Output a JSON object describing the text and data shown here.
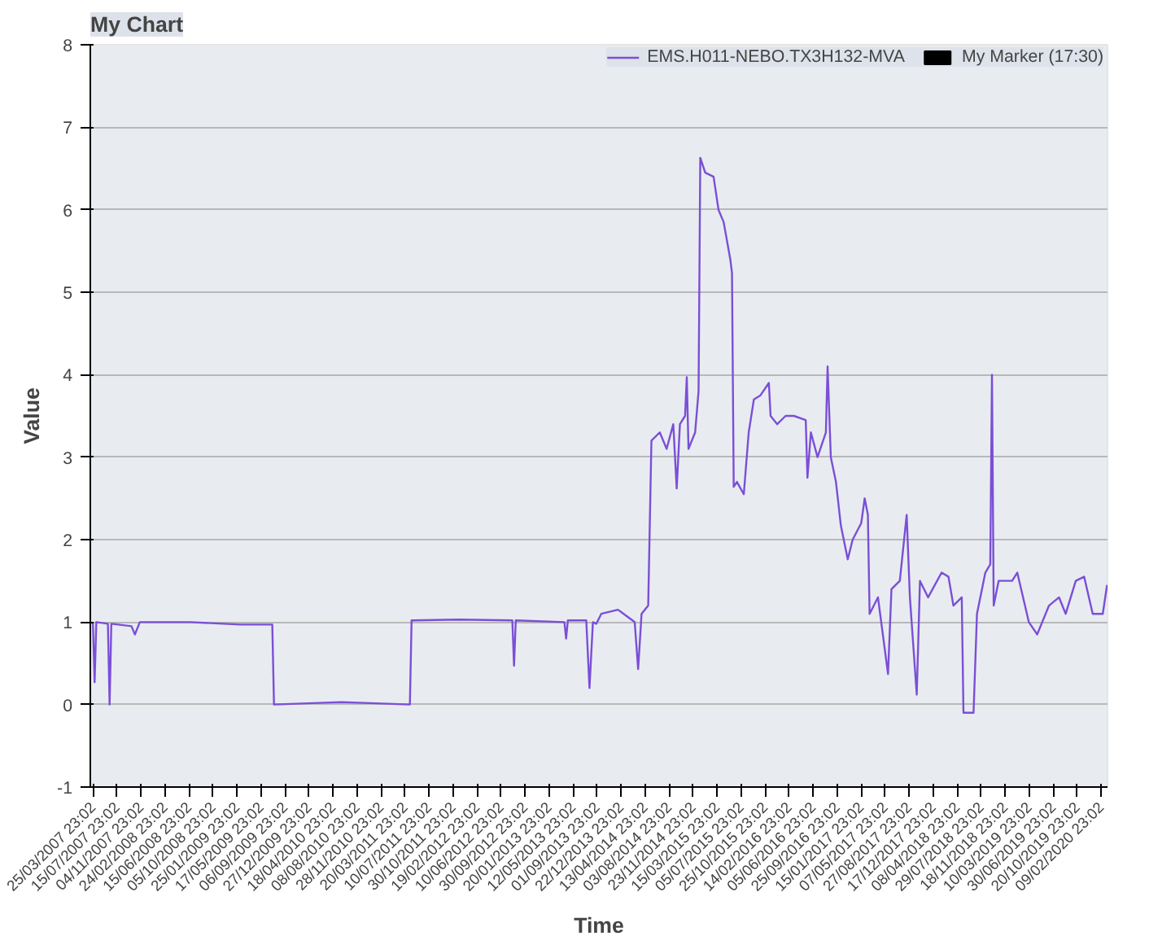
{
  "chart_data": {
    "type": "line",
    "title": "My Chart",
    "xlabel": "Time",
    "ylabel": "Value",
    "xlim": [
      "2007-03-13",
      "2020-03-10"
    ],
    "ylim": [
      -1,
      8
    ],
    "yticks": [
      -1,
      0,
      1,
      2,
      3,
      4,
      5,
      6,
      7,
      8
    ],
    "xticks": [
      {
        "value": "2007-03-25T23:02",
        "label": "25/03/2007 23:02"
      },
      {
        "value": "2007-07-15T23:02",
        "label": "15/07/2007 23:02"
      },
      {
        "value": "2007-11-04T23:02",
        "label": "04/11/2007 23:02"
      },
      {
        "value": "2008-02-24T23:02",
        "label": "24/02/2008 23:02"
      },
      {
        "value": "2008-06-15T23:02",
        "label": "15/06/2008 23:02"
      },
      {
        "value": "2008-10-05T23:02",
        "label": "05/10/2008 23:02"
      },
      {
        "value": "2009-01-25T23:02",
        "label": "25/01/2009 23:02"
      },
      {
        "value": "2009-05-17T23:02",
        "label": "17/05/2009 23:02"
      },
      {
        "value": "2009-09-06T23:02",
        "label": "06/09/2009 23:02"
      },
      {
        "value": "2009-12-27T23:02",
        "label": "27/12/2009 23:02"
      },
      {
        "value": "2010-04-18T23:02",
        "label": "18/04/2010 23:02"
      },
      {
        "value": "2010-08-08T23:02",
        "label": "08/08/2010 23:02"
      },
      {
        "value": "2010-11-28T23:02",
        "label": "28/11/2010 23:02"
      },
      {
        "value": "2011-03-20T23:02",
        "label": "20/03/2011 23:02"
      },
      {
        "value": "2011-07-10T23:02",
        "label": "10/07/2011 23:02"
      },
      {
        "value": "2011-10-30T23:02",
        "label": "30/10/2011 23:02"
      },
      {
        "value": "2012-02-19T23:02",
        "label": "19/02/2012 23:02"
      },
      {
        "value": "2012-06-10T23:02",
        "label": "10/06/2012 23:02"
      },
      {
        "value": "2012-09-30T23:02",
        "label": "30/09/2012 23:02"
      },
      {
        "value": "2013-01-20T23:02",
        "label": "20/01/2013 23:02"
      },
      {
        "value": "2013-05-12T23:02",
        "label": "12/05/2013 23:02"
      },
      {
        "value": "2013-09-01T23:02",
        "label": "01/09/2013 23:02"
      },
      {
        "value": "2013-12-22T23:02",
        "label": "22/12/2013 23:02"
      },
      {
        "value": "2014-04-13T23:02",
        "label": "13/04/2014 23:02"
      },
      {
        "value": "2014-08-03T23:02",
        "label": "03/08/2014 23:02"
      },
      {
        "value": "2014-11-23T23:02",
        "label": "23/11/2014 23:02"
      },
      {
        "value": "2015-03-15T23:02",
        "label": "15/03/2015 23:02"
      },
      {
        "value": "2015-07-05T23:02",
        "label": "05/07/2015 23:02"
      },
      {
        "value": "2015-10-25T23:02",
        "label": "25/10/2015 23:02"
      },
      {
        "value": "2016-02-14T23:02",
        "label": "14/02/2016 23:02"
      },
      {
        "value": "2016-06-05T23:02",
        "label": "05/06/2016 23:02"
      },
      {
        "value": "2016-09-25T23:02",
        "label": "25/09/2016 23:02"
      },
      {
        "value": "2017-01-15T23:02",
        "label": "15/01/2017 23:02"
      },
      {
        "value": "2017-05-07T23:02",
        "label": "07/05/2017 23:02"
      },
      {
        "value": "2017-08-27T23:02",
        "label": "27/08/2017 23:02"
      },
      {
        "value": "2017-12-17T23:02",
        "label": "17/12/2017 23:02"
      },
      {
        "value": "2018-04-08T23:02",
        "label": "08/04/2018 23:02"
      },
      {
        "value": "2018-07-29T23:02",
        "label": "29/07/2018 23:02"
      },
      {
        "value": "2018-11-18T23:02",
        "label": "18/11/2018 23:02"
      },
      {
        "value": "2019-03-10T23:02",
        "label": "10/03/2019 23:02"
      },
      {
        "value": "2019-06-30T23:02",
        "label": "30/06/2019 23:02"
      },
      {
        "value": "2019-10-20T23:02",
        "label": "20/10/2019 23:02"
      },
      {
        "value": "2020-02-09T23:02",
        "label": "09/02/2020 23:02"
      }
    ],
    "grid": "y",
    "legend": "top right",
    "series": [
      {
        "name": "EMS.H011-NEBO.TX3H132-MVA",
        "color": "#7b4fd6",
        "x": [
          "2007-03-25",
          "2007-04-02",
          "2007-04-10",
          "2007-06-03",
          "2007-06-11",
          "2007-06-19",
          "2007-09-21",
          "2007-10-07",
          "2007-10-30",
          "2008-06-21",
          "2009-02-11",
          "2009-07-09",
          "2009-07-17",
          "2010-05-27",
          "2011-04-12",
          "2011-04-20",
          "2011-11-25",
          "2012-08-02",
          "2012-08-10",
          "2012-08-18",
          "2013-04-02",
          "2013-04-10",
          "2013-04-18",
          "2013-07-13",
          "2013-07-28",
          "2013-08-13",
          "2013-08-29",
          "2013-09-21",
          "2013-12-08",
          "2014-02-24",
          "2014-03-12",
          "2014-03-28",
          "2014-04-28",
          "2014-05-13",
          "2014-06-21",
          "2014-07-23",
          "2014-08-23",
          "2014-09-08",
          "2014-09-23",
          "2014-10-17",
          "2014-10-25",
          "2014-11-02",
          "2014-12-03",
          "2014-12-19",
          "2014-12-27",
          "2015-01-19",
          "2015-02-27",
          "2015-03-22",
          "2015-04-15",
          "2015-05-16",
          "2015-05-24",
          "2015-06-01",
          "2015-06-16",
          "2015-07-18",
          "2015-08-10",
          "2015-09-03",
          "2015-10-04",
          "2015-11-12",
          "2015-11-20",
          "2015-12-21",
          "2016-01-29",
          "2016-03-08",
          "2016-05-02",
          "2016-05-10",
          "2016-05-26",
          "2016-06-26",
          "2016-08-04",
          "2016-08-12",
          "2016-08-27",
          "2016-09-20",
          "2016-10-13",
          "2016-11-14",
          "2016-12-07",
          "2017-01-16",
          "2017-02-01",
          "2017-02-16",
          "2017-02-24",
          "2017-04-04",
          "2017-05-21",
          "2017-06-06",
          "2017-07-15",
          "2017-08-16",
          "2017-08-31",
          "2017-10-02",
          "2017-10-17",
          "2017-11-24",
          "2018-01-26",
          "2018-02-27",
          "2018-03-22",
          "2018-04-30",
          "2018-05-08",
          "2018-06-24",
          "2018-07-10",
          "2018-08-18",
          "2018-09-10",
          "2018-09-18",
          "2018-09-26",
          "2018-10-19",
          "2018-12-21",
          "2019-01-14",
          "2019-03-09",
          "2019-04-17",
          "2019-06-11",
          "2019-07-28",
          "2019-08-28",
          "2019-10-14",
          "2019-11-22",
          "2020-01-01",
          "2020-02-17",
          "2020-03-08"
        ],
        "values": [
          1.0,
          0.27,
          1.0,
          0.98,
          0.0,
          0.98,
          0.95,
          0.85,
          1.0,
          1.0,
          0.97,
          0.97,
          0.0,
          0.03,
          0.0,
          1.02,
          1.03,
          1.02,
          0.47,
          1.02,
          1.0,
          0.8,
          1.02,
          1.02,
          0.2,
          1.0,
          0.98,
          1.1,
          1.15,
          1.0,
          0.43,
          1.1,
          1.2,
          3.2,
          3.3,
          3.1,
          3.4,
          2.62,
          3.4,
          3.5,
          3.97,
          3.1,
          3.3,
          3.8,
          6.63,
          6.45,
          6.4,
          6.0,
          5.85,
          5.4,
          5.23,
          2.64,
          2.7,
          2.55,
          3.3,
          3.7,
          3.75,
          3.9,
          3.5,
          3.4,
          3.5,
          3.5,
          3.45,
          2.75,
          3.3,
          3.0,
          3.3,
          4.1,
          3.0,
          2.7,
          2.17,
          1.76,
          2.0,
          2.2,
          2.5,
          2.3,
          1.1,
          1.3,
          0.37,
          1.4,
          1.5,
          2.3,
          1.3,
          0.12,
          1.5,
          1.3,
          1.6,
          1.55,
          1.2,
          1.3,
          -0.1,
          -0.1,
          1.1,
          1.6,
          1.7,
          4.0,
          1.2,
          1.5,
          1.5,
          1.6,
          1.0,
          0.85,
          1.2,
          1.3,
          1.1,
          1.5,
          1.55,
          1.1,
          1.1,
          1.45
        ]
      },
      {
        "name": "My Marker (17:30)",
        "color": "#000000",
        "type": "bar"
      }
    ]
  }
}
